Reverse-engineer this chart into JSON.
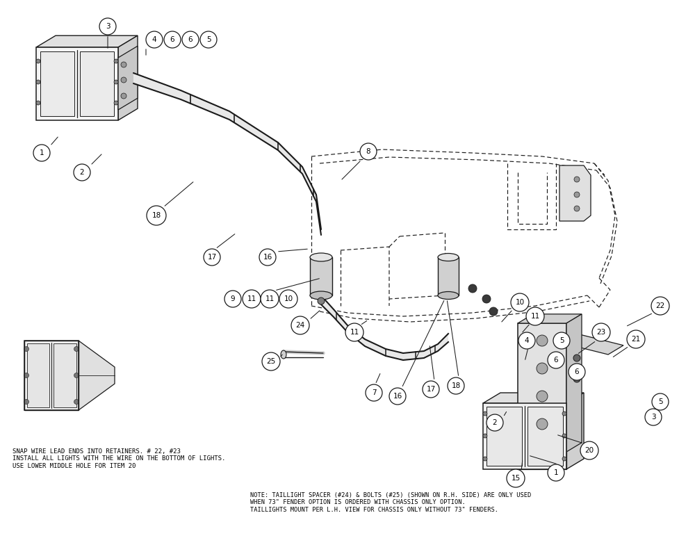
{
  "bg_color": "#ffffff",
  "line_color": "#1a1a1a",
  "text_color": "#000000",
  "note_left_lines": [
    "SNAP WIRE LEAD ENDS INTO RETAINERS. # 22, #23",
    "INSTALL ALL LIGHTS WITH THE WIRE ON THE BOTTOM OF LIGHTS.",
    "USE LOWER MIDDLE HOLE FOR ITEM 20"
  ],
  "note_right_lines": [
    "NOTE: TAILLIGHT SPACER (#24) & BOLTS (#25) (SHOWN ON R.H. SIDE) ARE ONLY USED",
    "WHEN 73\" FENDER OPTION IS ORDERED WITH CHASSIS ONLY OPTION.",
    "TAILLIGHTS MOUNT PER L.H. VIEW FOR CHASSIS ONLY WITHOUT 73\" FENDERS."
  ],
  "fig_width": 10.0,
  "fig_height": 7.84,
  "dpi": 100
}
